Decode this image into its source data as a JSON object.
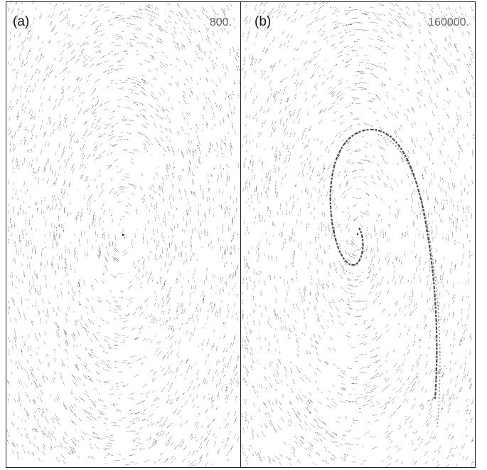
{
  "panels": [
    {
      "label": "(a)",
      "step": "800."
    },
    {
      "label": "(b)",
      "step": "160000."
    }
  ]
}
